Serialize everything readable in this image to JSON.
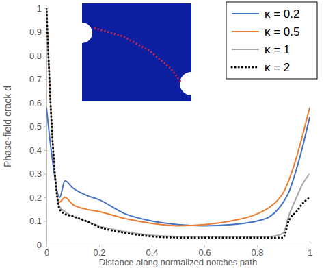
{
  "chart_data": {
    "type": "line",
    "x_label": "Distance along normalized notches path",
    "y_label": "Phase-field crack d",
    "x": [
      0,
      0.02,
      0.05,
      0.07,
      0.1,
      0.15,
      0.2,
      0.3,
      0.4,
      0.5,
      0.6,
      0.7,
      0.8,
      0.85,
      0.88,
      0.9,
      0.92,
      0.95,
      0.97,
      1
    ],
    "series": [
      {
        "name": "κ = 0.2",
        "color": "#4472c4",
        "line_style": "solid",
        "values": [
          0.58,
          0.38,
          0.2,
          0.27,
          0.24,
          0.21,
          0.19,
          0.13,
          0.1,
          0.085,
          0.08,
          0.085,
          0.1,
          0.12,
          0.15,
          0.18,
          0.22,
          0.32,
          0.4,
          0.54
        ]
      },
      {
        "name": "κ = 0.5",
        "color": "#ed7d31",
        "line_style": "solid",
        "values": [
          1.0,
          0.5,
          0.18,
          0.2,
          0.17,
          0.15,
          0.14,
          0.11,
          0.09,
          0.08,
          0.085,
          0.1,
          0.13,
          0.16,
          0.19,
          0.22,
          0.27,
          0.37,
          0.45,
          0.58
        ]
      },
      {
        "name": "κ = 1",
        "color": "#a5a5a5",
        "line_style": "solid",
        "values": [
          1.0,
          0.5,
          0.16,
          0.14,
          0.12,
          0.1,
          0.08,
          0.055,
          0.04,
          0.035,
          0.035,
          0.035,
          0.035,
          0.035,
          0.04,
          0.05,
          0.12,
          0.2,
          0.25,
          0.3
        ]
      },
      {
        "name": "κ = 2",
        "color": "#000000",
        "line_style": "dotted",
        "values": [
          1.0,
          0.5,
          0.15,
          0.13,
          0.12,
          0.1,
          0.075,
          0.05,
          0.035,
          0.03,
          0.03,
          0.03,
          0.03,
          0.03,
          0.03,
          0.03,
          0.1,
          0.14,
          0.17,
          0.2
        ]
      }
    ],
    "xlim": [
      0,
      1
    ],
    "ylim": [
      0,
      1
    ],
    "xticks": [
      0,
      0.2,
      0.4,
      0.6,
      0.8,
      1
    ],
    "yticks": [
      0,
      0.1,
      0.2,
      0.3,
      0.4,
      0.5,
      0.6,
      0.7,
      0.8,
      0.9,
      1
    ],
    "grid": false,
    "legend": "top-right"
  }
}
